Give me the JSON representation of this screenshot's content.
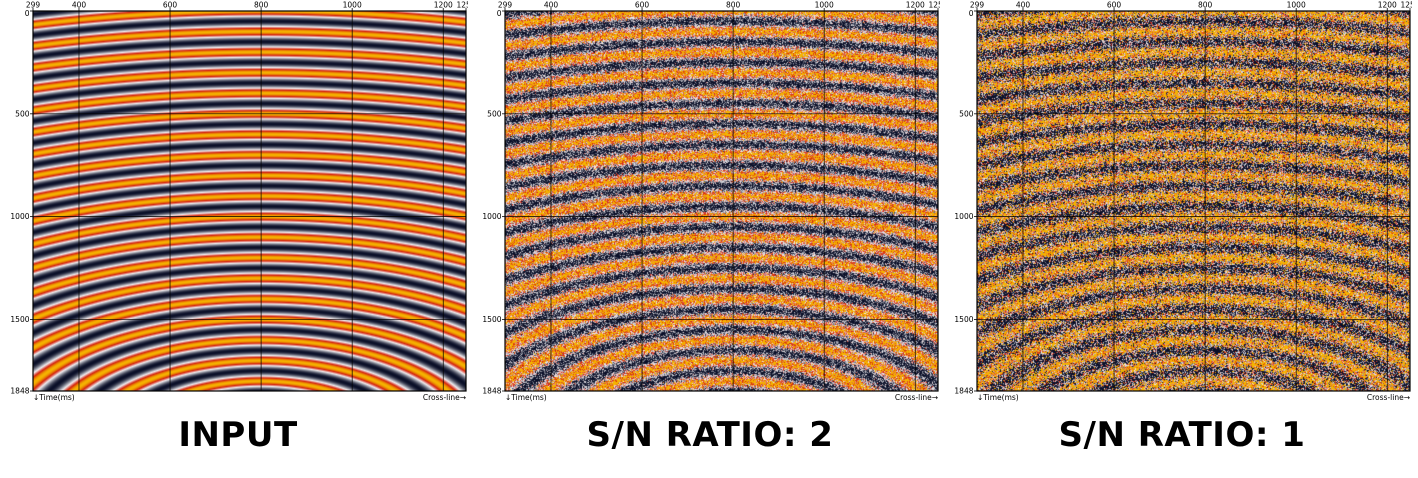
{
  "panels": [
    {
      "caption": "INPUT",
      "noise_level": 0,
      "x_ticks": [
        "299",
        "400",
        "600",
        "800",
        "1000",
        "1200",
        "1250"
      ],
      "y_ticks": [
        "0",
        "500",
        "1000",
        "1500",
        "1848"
      ],
      "y_axis_label": "↓Time(ms)",
      "x_axis_label": "Cross-line→"
    },
    {
      "caption": "S/N RATIO: 2",
      "noise_level": 0.5,
      "x_ticks": [
        "299",
        "400",
        "600",
        "800",
        "1000",
        "1200",
        "1250"
      ],
      "y_ticks": [
        "0",
        "500",
        "1000",
        "1500",
        "1848"
      ],
      "y_axis_label": "↓Time(ms)",
      "x_axis_label": "Cross-line→"
    },
    {
      "caption": "S/N RATIO: 1",
      "noise_level": 1,
      "x_ticks": [
        "299",
        "400",
        "600",
        "800",
        "1000",
        "1200",
        "1250"
      ],
      "y_ticks": [
        "0",
        "500",
        "1000",
        "1500",
        "1848"
      ],
      "y_axis_label": "↓Time(ms)",
      "x_axis_label": "Cross-line→"
    }
  ],
  "colormap": [
    "#0a0f28",
    "#f2f2f5",
    "#d41e0a",
    "#f5b400"
  ],
  "x_range": [
    299,
    1250
  ],
  "y_range": [
    0,
    1848
  ]
}
